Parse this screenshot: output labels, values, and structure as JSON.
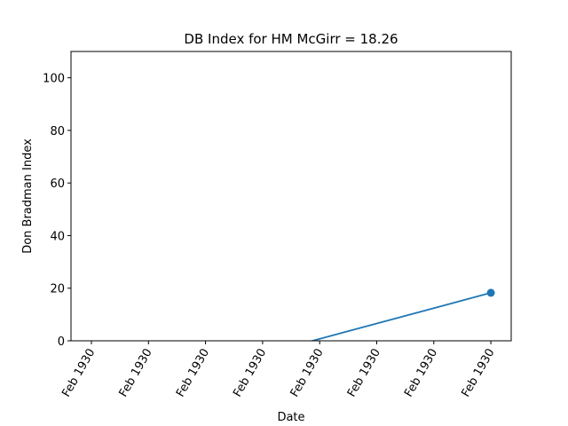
{
  "chart_data": {
    "type": "line",
    "title": "DB Index for HM McGirr = 18.26",
    "xlabel": "Date",
    "ylabel": "Don Bradman Index",
    "ylim": [
      0,
      110
    ],
    "yticks": [
      0,
      20,
      40,
      60,
      80,
      100
    ],
    "xticks": [
      "Feb 1930",
      "Feb 1930",
      "Feb 1930",
      "Feb 1930",
      "Feb 1930",
      "Feb 1930",
      "Feb 1930",
      "Feb 1930"
    ],
    "grid": false,
    "line_color": "#1f77b4",
    "series": [
      {
        "points": [
          {
            "x": 3.6,
            "y": -1.6
          },
          {
            "x": 7.0,
            "y": 18.26
          }
        ],
        "marker_last": true
      }
    ]
  }
}
